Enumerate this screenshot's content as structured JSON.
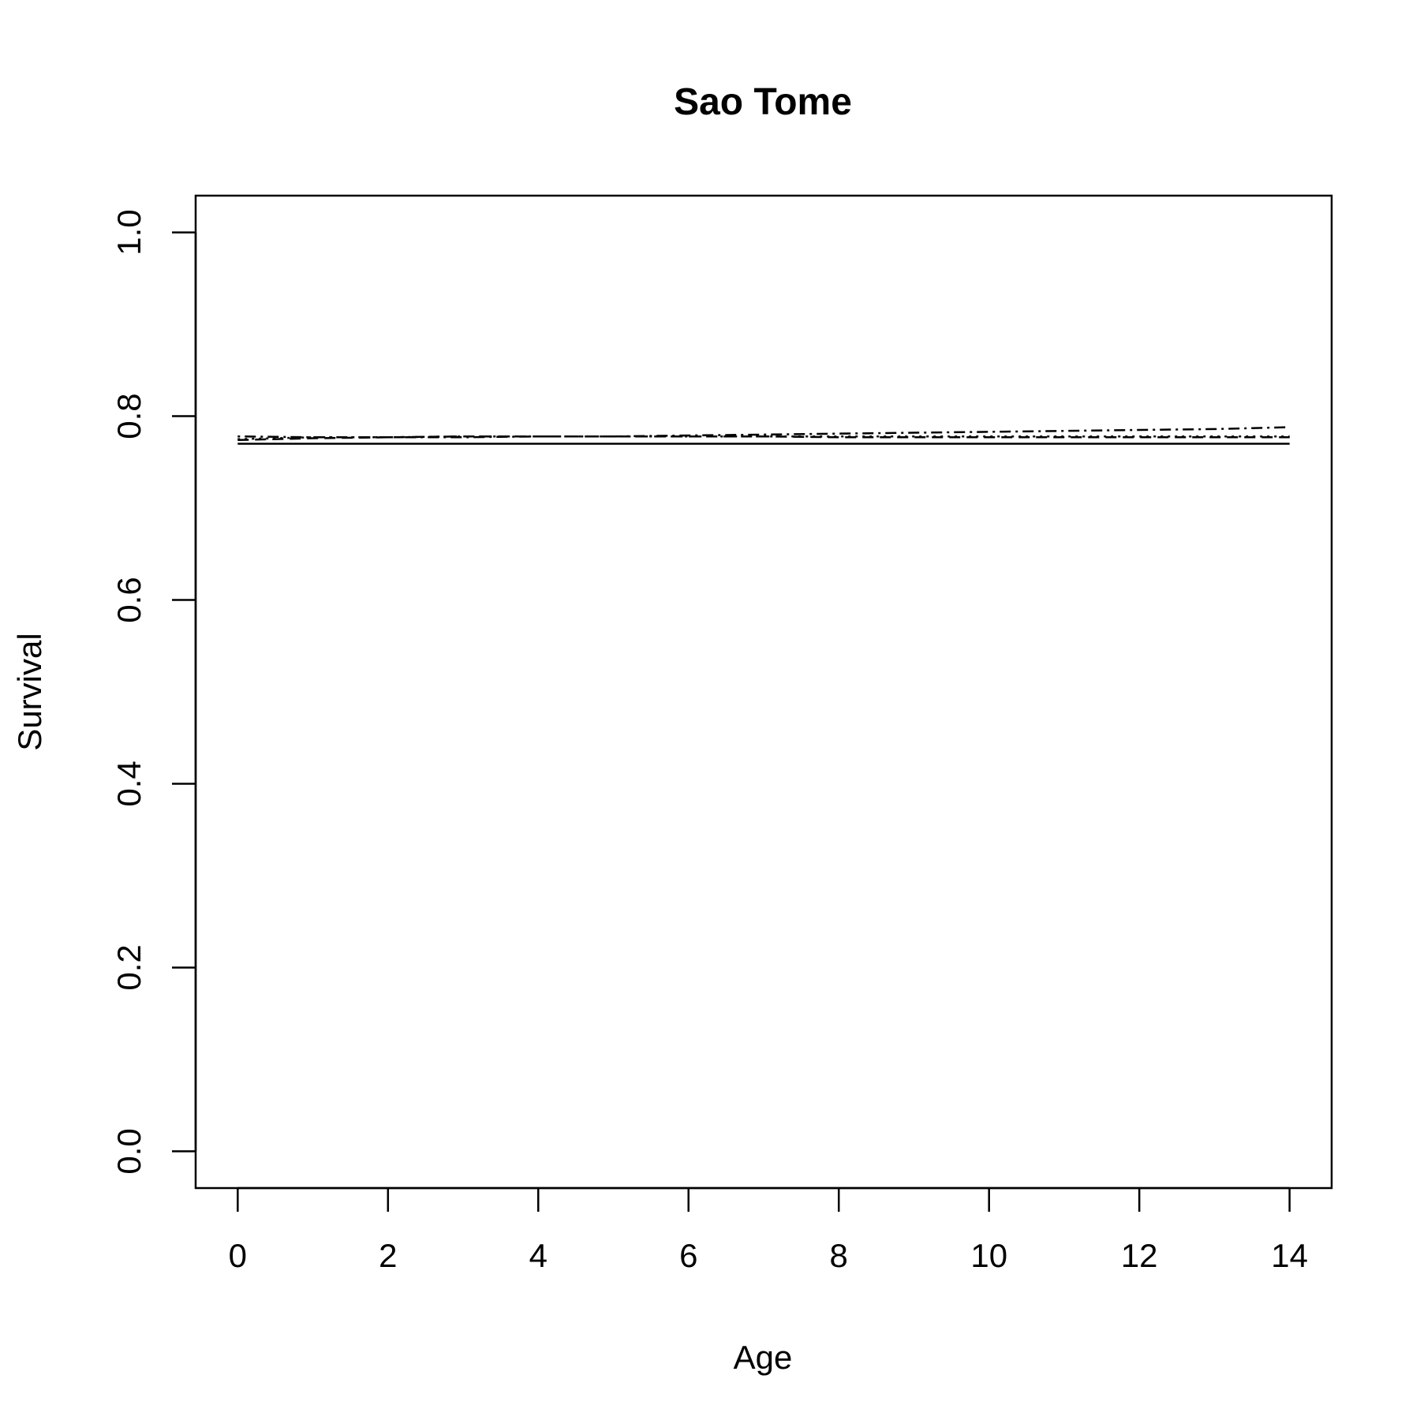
{
  "chart_data": {
    "type": "line",
    "title": "Sao Tome",
    "xlabel": "Age",
    "ylabel": "Survival",
    "xlim": [
      -0.56,
      14.56
    ],
    "ylim": [
      -0.04,
      1.04
    ],
    "xticks": [
      0,
      2,
      4,
      6,
      8,
      10,
      12,
      14
    ],
    "yticks": [
      0.0,
      0.2,
      0.4,
      0.6,
      0.8,
      1.0
    ],
    "xtick_labels": [
      "0",
      "2",
      "4",
      "6",
      "8",
      "10",
      "12",
      "14"
    ],
    "ytick_labels": [
      "0.0",
      "0.2",
      "0.4",
      "0.6",
      "0.8",
      "1.0"
    ],
    "grid": false,
    "legend": "none",
    "series": [
      {
        "line_style": "solid",
        "x": [
          0,
          1,
          2,
          3,
          4,
          5,
          6,
          7,
          8,
          9,
          10,
          11,
          12,
          13,
          14
        ],
        "y": [
          0.77,
          0.77,
          0.77,
          0.77,
          0.77,
          0.77,
          0.77,
          0.77,
          0.77,
          0.77,
          0.77,
          0.77,
          0.77,
          0.77,
          0.77
        ]
      },
      {
        "line_style": "dashed",
        "x": [
          0,
          1,
          2,
          3,
          4,
          5,
          6,
          7,
          8,
          9,
          10,
          11,
          12,
          13,
          14
        ],
        "y": [
          0.774,
          0.776,
          0.777,
          0.778,
          0.778,
          0.778,
          0.778,
          0.778,
          0.777,
          0.777,
          0.777,
          0.777,
          0.777,
          0.777,
          0.777
        ]
      },
      {
        "line_style": "dotted",
        "x": [
          0,
          1,
          2,
          3,
          4,
          5,
          6,
          7,
          8,
          9,
          10,
          11,
          12,
          13,
          14
        ],
        "y": [
          0.775,
          0.777,
          0.777,
          0.778,
          0.778,
          0.778,
          0.778,
          0.778,
          0.778,
          0.778,
          0.778,
          0.778,
          0.778,
          0.778,
          0.778
        ]
      },
      {
        "line_style": "dotdash",
        "x": [
          0,
          1,
          2,
          3,
          4,
          5,
          6,
          7,
          8,
          9,
          10,
          11,
          12,
          13,
          14
        ],
        "y": [
          0.778,
          0.777,
          0.777,
          0.777,
          0.778,
          0.778,
          0.779,
          0.78,
          0.781,
          0.782,
          0.783,
          0.784,
          0.785,
          0.786,
          0.788
        ]
      }
    ]
  }
}
